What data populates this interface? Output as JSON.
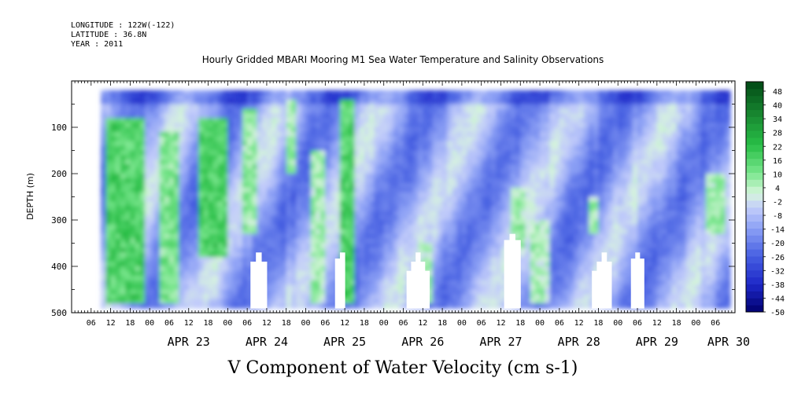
{
  "header": {
    "longitude": "LONGITUDE : 122W(-122)",
    "latitude": "LATITUDE : 36.8N",
    "year": "YEAR : 2011",
    "title": "Hourly Gridded MBARI Mooring M1 Sea Water Temperature and Salinity Observations"
  },
  "chart_data": {
    "type": "heatmap",
    "title": "Hourly Gridded MBARI Mooring M1 Sea Water Temperature and Salinity Observations",
    "xlabel": "V Component of Water Velocity (cm s-1)",
    "ylabel": "DEPTH (m)",
    "x_start": "APR 22 00",
    "x_end": "APR 30 06",
    "data_start_hour": 9,
    "data_end_hour": 202,
    "xlim_hours": [
      0,
      204
    ],
    "ylim": [
      500,
      0
    ],
    "y_inverted": true,
    "depth_range": [
      20,
      485
    ],
    "y_ticks": [
      100,
      200,
      300,
      400,
      500
    ],
    "x_hour_ticks": [
      "06",
      "12",
      "18",
      "00",
      "06",
      "12",
      "18",
      "00",
      "06",
      "12",
      "18",
      "00",
      "06",
      "12",
      "18",
      "00",
      "06",
      "12",
      "18",
      "00",
      "06",
      "12",
      "18",
      "00",
      "06",
      "12",
      "18",
      "00",
      "06",
      "12",
      "18",
      "00",
      "06"
    ],
    "x_day_labels": [
      "APR 23",
      "APR 24",
      "APR 25",
      "APR 26",
      "APR 27",
      "APR 28",
      "APR 29",
      "APR 30"
    ],
    "colorbar": {
      "labels": [
        "48",
        "40",
        "34",
        "28",
        "22",
        "16",
        "10",
        "4",
        "-2",
        "-8",
        "-14",
        "-20",
        "-26",
        "-32",
        "-38",
        "-44",
        "-50"
      ],
      "levels": [
        -50,
        -47,
        -44,
        -41,
        -38,
        -35,
        -32,
        -29,
        -26,
        -23,
        -20,
        -17,
        -14,
        -11,
        -8,
        -5,
        -2,
        1,
        4,
        7,
        10,
        13,
        16,
        19,
        22,
        25,
        28,
        31,
        34,
        37,
        40,
        43,
        46,
        50
      ]
    },
    "background_range_cm_s": [
      -26,
      -2
    ],
    "positive_bands": [
      {
        "from_hour": 10,
        "to_hour": 22,
        "depth_from": 80,
        "depth_to": 480,
        "value": 16
      },
      {
        "from_hour": 27,
        "to_hour": 32,
        "depth_from": 110,
        "depth_to": 480,
        "value": 10
      },
      {
        "from_hour": 38,
        "to_hour": 47,
        "depth_from": 80,
        "depth_to": 380,
        "value": 16
      },
      {
        "from_hour": 52,
        "to_hour": 57,
        "depth_from": 60,
        "depth_to": 330,
        "value": 8
      },
      {
        "from_hour": 65,
        "to_hour": 68,
        "depth_from": 40,
        "depth_to": 200,
        "value": 6
      },
      {
        "from_hour": 73,
        "to_hour": 78,
        "depth_from": 150,
        "depth_to": 480,
        "value": 6
      },
      {
        "from_hour": 82,
        "to_hour": 86,
        "depth_from": 40,
        "depth_to": 480,
        "value": 16
      },
      {
        "from_hour": 106,
        "to_hour": 110,
        "depth_from": 350,
        "depth_to": 480,
        "value": 4
      },
      {
        "from_hour": 134,
        "to_hour": 139,
        "depth_from": 230,
        "depth_to": 360,
        "value": 6
      },
      {
        "from_hour": 141,
        "to_hour": 147,
        "depth_from": 300,
        "depth_to": 480,
        "value": 4
      },
      {
        "from_hour": 159,
        "to_hour": 162,
        "depth_from": 250,
        "depth_to": 330,
        "value": 6
      },
      {
        "from_hour": 195,
        "to_hour": 201,
        "depth_from": 200,
        "depth_to": 330,
        "value": 6
      }
    ],
    "missing_data_regions_hours": [
      [
        55,
        60
      ],
      [
        81,
        84
      ],
      [
        103,
        110
      ],
      [
        133,
        138
      ],
      [
        160,
        166
      ],
      [
        172,
        176
      ]
    ]
  }
}
